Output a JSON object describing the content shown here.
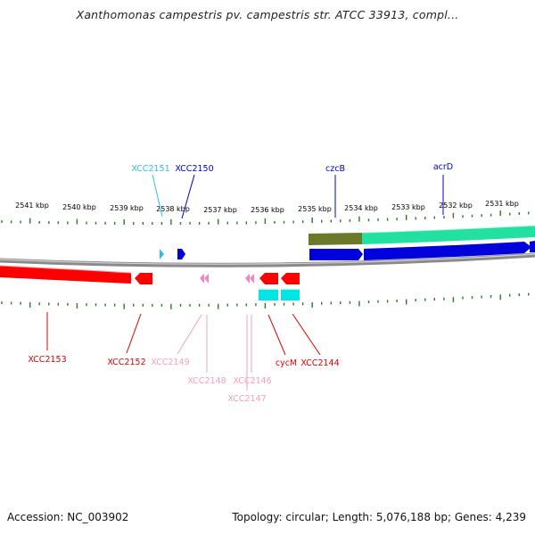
{
  "title": "Xanthomonas campestris pv. campestris str. ATCC 33913, compl...",
  "footer": {
    "accession": "Accession: NC_003902",
    "stats": "Topology: circular; Length: 5,076,188 bp; Genes: 4,239"
  },
  "colors": {
    "backbone": "#888888",
    "tick": "#2a7a2a",
    "red": "#ff0000",
    "pink": "#ee88bb",
    "cyan": "#00e5e5",
    "blue": "#0000dd",
    "lightblue": "#33bbee",
    "olive": "#6b7a2a",
    "mint": "#22e0a0"
  },
  "scale_labels": [
    "2541 kbp",
    "2540 kbp",
    "2539 kbp",
    "2538 kbp",
    "2537 kbp",
    "2536 kbp",
    "2535 kbp",
    "2534 kbp",
    "2533 kbp",
    "2532 kbp",
    "2531 kbp"
  ],
  "upper_genes": [
    {
      "name": "XCC2151",
      "color": "#33bbee"
    },
    {
      "name": "XCC2150",
      "color": "#0000cc"
    },
    {
      "name": "czcB",
      "color": "#0000cc"
    },
    {
      "name": "acrD",
      "color": "#0000cc"
    }
  ],
  "lower_genes": [
    {
      "name": "XCC2153",
      "color": "#dd0000"
    },
    {
      "name": "XCC2152",
      "color": "#dd0000"
    },
    {
      "name": "XCC2149",
      "color": "#f0a0c0"
    },
    {
      "name": "XCC2148",
      "color": "#f0a0c0"
    },
    {
      "name": "XCC2146",
      "color": "#f0a0c0"
    },
    {
      "name": "XCC2147",
      "color": "#f0a0c0"
    },
    {
      "name": "cycM",
      "color": "#dd0000"
    },
    {
      "name": "XCC2144",
      "color": "#dd0000"
    }
  ]
}
